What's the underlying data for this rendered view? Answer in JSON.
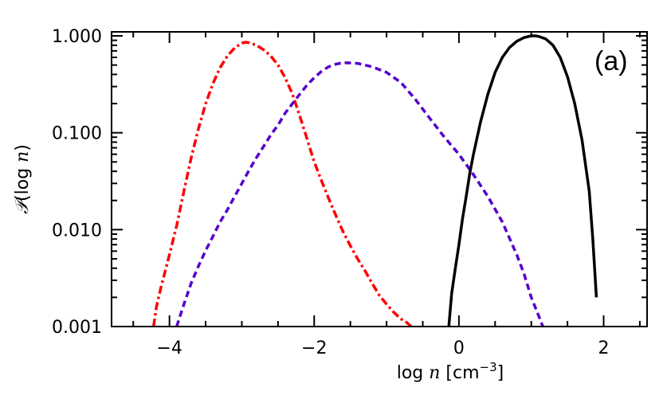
{
  "chart_data": {
    "type": "line",
    "title": "",
    "panel_label": "(a)",
    "xlabel": {
      "prefix": "log ",
      "var": "n",
      "unit_open": " [cm",
      "exponent": "−3",
      "unit_close": "]"
    },
    "ylabel": {
      "symbol": "𝒫",
      "text": "(log ",
      "var": "n",
      "close": ")"
    },
    "xlim": [
      -4.8,
      2.6
    ],
    "ylim": [
      0.001,
      1.1
    ],
    "yscale": "log",
    "x_ticks": [
      -4,
      -2,
      0,
      2
    ],
    "x_tick_labels": [
      "−4",
      "−2",
      "0",
      "2"
    ],
    "y_ticks": [
      0.001,
      0.01,
      0.1,
      1.0
    ],
    "y_tick_labels": [
      "0.001",
      "0.010",
      "0.100",
      "1.000"
    ],
    "grid": false,
    "legend": "none",
    "series": [
      {
        "style": "dash-dot",
        "color": "#ff0000",
        "x": [
          -4.22,
          -4.18,
          -4.12,
          -4.0,
          -3.9,
          -3.8,
          -3.7,
          -3.6,
          -3.5,
          -3.4,
          -3.3,
          -3.2,
          -3.1,
          -3.0,
          -2.95,
          -2.9,
          -2.8,
          -2.7,
          -2.6,
          -2.5,
          -2.4,
          -2.3,
          -2.2,
          -2.1,
          -2.0,
          -1.9,
          -1.8,
          -1.7,
          -1.6,
          -1.5,
          -1.4,
          -1.3,
          -1.2,
          -1.1,
          -1.0,
          -0.9,
          -0.8,
          -0.72,
          -0.66
        ],
        "y": [
          0.001,
          0.0016,
          0.0025,
          0.0055,
          0.011,
          0.025,
          0.055,
          0.11,
          0.2,
          0.32,
          0.47,
          0.62,
          0.75,
          0.84,
          0.86,
          0.85,
          0.8,
          0.72,
          0.62,
          0.5,
          0.37,
          0.25,
          0.15,
          0.087,
          0.05,
          0.032,
          0.021,
          0.014,
          0.0095,
          0.0068,
          0.005,
          0.0038,
          0.0028,
          0.0021,
          0.0017,
          0.0014,
          0.0012,
          0.0011,
          0.001
        ]
      },
      {
        "style": "dashed",
        "color": "#5500cc",
        "x": [
          -3.9,
          -3.8,
          -3.7,
          -3.6,
          -3.5,
          -3.4,
          -3.3,
          -3.2,
          -3.1,
          -3.0,
          -2.9,
          -2.8,
          -2.7,
          -2.6,
          -2.5,
          -2.4,
          -2.3,
          -2.2,
          -2.1,
          -2.0,
          -1.9,
          -1.8,
          -1.7,
          -1.6,
          -1.4,
          -1.2,
          -1.0,
          -0.8,
          -0.6,
          -0.4,
          -0.2,
          0.0,
          0.2,
          0.4,
          0.6,
          0.8,
          0.9,
          1.0,
          1.1,
          1.16
        ],
        "y": [
          0.001,
          0.0017,
          0.0028,
          0.0042,
          0.0061,
          0.0085,
          0.012,
          0.016,
          0.022,
          0.03,
          0.041,
          0.055,
          0.072,
          0.095,
          0.12,
          0.16,
          0.2,
          0.25,
          0.31,
          0.37,
          0.43,
          0.48,
          0.51,
          0.53,
          0.52,
          0.48,
          0.42,
          0.33,
          0.22,
          0.14,
          0.09,
          0.06,
          0.037,
          0.022,
          0.012,
          0.0055,
          0.0035,
          0.002,
          0.0013,
          0.001
        ]
      },
      {
        "style": "solid",
        "color": "#000000",
        "x": [
          -0.14,
          -0.1,
          -0.05,
          0.0,
          0.05,
          0.1,
          0.15,
          0.2,
          0.3,
          0.4,
          0.5,
          0.6,
          0.7,
          0.8,
          0.9,
          1.0,
          1.05,
          1.1,
          1.2,
          1.3,
          1.4,
          1.5,
          1.6,
          1.7,
          1.8,
          1.85,
          1.9
        ],
        "y": [
          0.001,
          0.0022,
          0.004,
          0.007,
          0.013,
          0.022,
          0.038,
          0.06,
          0.13,
          0.25,
          0.42,
          0.6,
          0.76,
          0.88,
          0.96,
          1.0,
          1.0,
          0.99,
          0.93,
          0.8,
          0.6,
          0.38,
          0.2,
          0.085,
          0.025,
          0.008,
          0.002
        ]
      }
    ]
  }
}
